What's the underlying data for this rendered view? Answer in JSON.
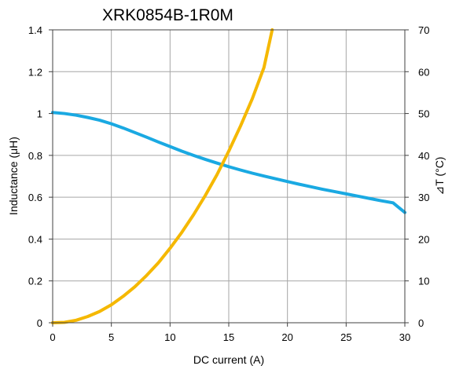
{
  "chart_data": {
    "type": "line",
    "title": "XRK0854B-1R0M",
    "xlabel": "DC current (A)",
    "ylabel_left": "Inductance (μH)",
    "ylabel_right": "⊿T (°C)",
    "xlim": [
      0,
      30
    ],
    "ylim_left": [
      0,
      1.4
    ],
    "ylim_right": [
      0,
      70
    ],
    "grid": true,
    "x_ticks": [
      "0",
      "5",
      "10",
      "15",
      "20",
      "25",
      "30"
    ],
    "y_left_ticks": [
      "0",
      "0.2",
      "0.4",
      "0.6",
      "0.8",
      "1",
      "1.2",
      "1.4"
    ],
    "y_right_ticks": [
      "0",
      "10",
      "20",
      "30",
      "40",
      "50",
      "60",
      "70"
    ],
    "series": [
      {
        "axis": "left",
        "color": "#1aa9e2",
        "x": [
          0,
          1,
          2,
          3,
          4,
          5,
          6,
          7,
          8,
          9,
          10,
          11,
          12,
          13,
          14,
          15,
          16,
          17,
          18,
          19,
          20,
          21,
          22,
          23,
          24,
          25,
          26,
          27,
          28,
          29,
          30
        ],
        "values": [
          1.005,
          1.0,
          0.992,
          0.981,
          0.968,
          0.951,
          0.931,
          0.909,
          0.887,
          0.864,
          0.842,
          0.82,
          0.8,
          0.781,
          0.763,
          0.746,
          0.73,
          0.715,
          0.701,
          0.688,
          0.675,
          0.662,
          0.65,
          0.638,
          0.627,
          0.616,
          0.605,
          0.594,
          0.583,
          0.573,
          0.527
        ]
      },
      {
        "axis": "right",
        "color": "#f5b800",
        "x": [
          0,
          1,
          2,
          3,
          4,
          5,
          6,
          7,
          8,
          9,
          10,
          11,
          12,
          13,
          14,
          15,
          16,
          17,
          18,
          18.7
        ],
        "values": [
          0,
          0.1,
          0.6,
          1.5,
          2.7,
          4.3,
          6.3,
          8.6,
          11.3,
          14.3,
          17.8,
          21.6,
          25.8,
          30.4,
          35.4,
          41.0,
          47.0,
          53.5,
          61.0,
          70.0
        ]
      }
    ]
  }
}
